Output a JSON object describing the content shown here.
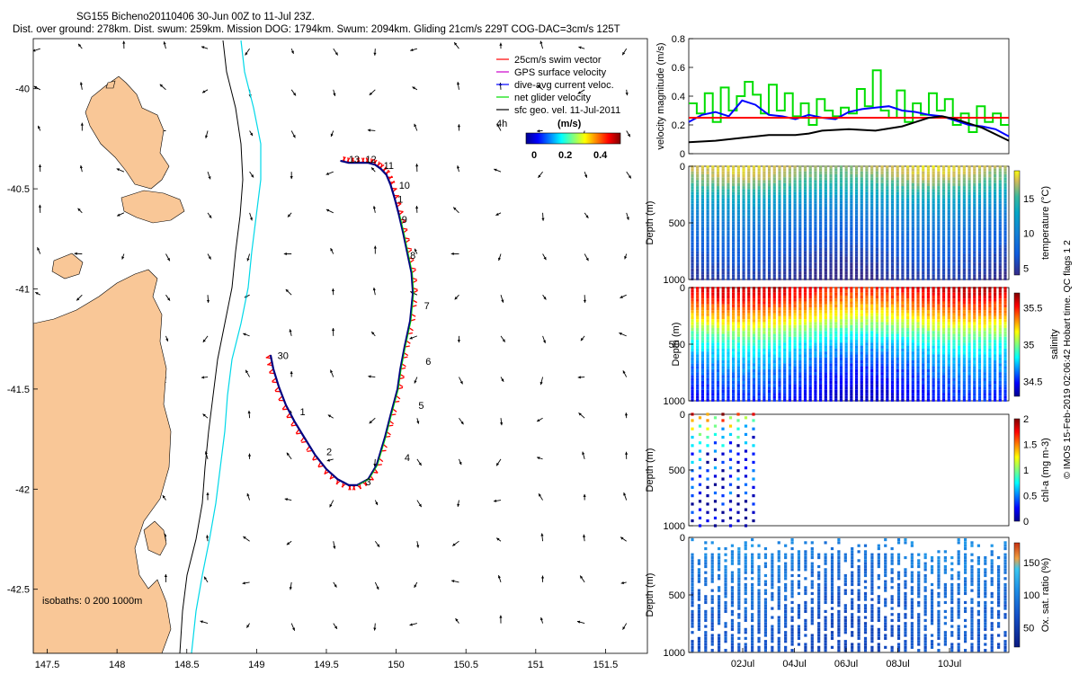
{
  "header": {
    "title_line1": "SG155 Bicheno20110406 30-Jun 00Z to 11-Jul 23Z.",
    "title_line2": "Dist. over ground: 278km. Dist. swum: 259km. Mission DOG: 1794km. Swum: 2094km. Gliding 21cm/s 229T COG-DAC=3cm/s 125T"
  },
  "colors": {
    "land": "#f9c797",
    "isobath_0": "#000000",
    "isobath_200": "#000000",
    "isobath_1000": "#00d8e8",
    "track": "#000080",
    "swim_vector": "#ff0000",
    "gps_velocity": "#cc00cc",
    "dive_avg": "#0000ff",
    "net_velocity": "#00dd00",
    "sfc_geo": "#000000"
  },
  "map": {
    "isobaths_label": "isobaths: 0   200 1000m",
    "legend": [
      {
        "key": "swim",
        "label": "25cm/s swim vector"
      },
      {
        "key": "gps",
        "label": "GPS surface velocity"
      },
      {
        "key": "dac",
        "label": "dive-avg current veloc."
      },
      {
        "key": "net",
        "label": "net glider velocity"
      },
      {
        "key": "sfc",
        "label": "sfc geo. vel. 11-Jul-2011"
      }
    ],
    "colorbar": {
      "label": "(m/s)",
      "ticks": [
        "0",
        "0.2",
        "0.4"
      ],
      "range": [
        0,
        0.5
      ],
      "side_label": "4h"
    }
  },
  "right_panels": {
    "imos_footer": "© IMOS 15-Feb-2019 02:06:42 Hobart time. QC flags 1  2"
  },
  "chart_data": [
    {
      "type": "map",
      "id": "glider-track-map",
      "xlabel": "Longitude",
      "ylabel": "Latitude",
      "xlim": [
        147.4,
        151.8
      ],
      "ylim": [
        -42.82,
        -39.75
      ],
      "xticks": [
        147.5,
        148,
        148.5,
        149,
        149.5,
        150,
        150.5,
        151,
        151.5
      ],
      "xtick_labels": [
        "147.5",
        "148",
        "148.5",
        "149",
        "149.5",
        "150",
        "150.5",
        "151",
        "151.5"
      ],
      "yticks": [
        -40,
        -40.5,
        -41,
        -41.5,
        -42,
        -42.5
      ],
      "ytick_labels": [
        "-40",
        "-40.5",
        "-41",
        "-41.5",
        "-42",
        "-42.5"
      ],
      "track": {
        "lon": [
          149.1,
          149.12,
          149.16,
          149.21,
          149.27,
          149.34,
          149.42,
          149.5,
          149.58,
          149.66,
          149.72,
          149.8,
          149.86,
          149.92,
          149.96,
          150.01,
          150.03,
          150.06,
          150.1,
          150.12,
          150.11,
          150.08,
          150.05,
          150.02,
          149.99,
          149.96,
          149.93,
          149.89,
          149.85,
          149.8,
          149.74,
          149.66,
          149.6
        ],
        "lat": [
          -41.33,
          -41.4,
          -41.49,
          -41.58,
          -41.66,
          -41.74,
          -41.83,
          -41.9,
          -41.95,
          -41.98,
          -41.98,
          -41.95,
          -41.88,
          -41.74,
          -41.63,
          -41.5,
          -41.4,
          -41.29,
          -41.16,
          -41.02,
          -40.92,
          -40.82,
          -40.72,
          -40.63,
          -40.55,
          -40.48,
          -40.43,
          -40.4,
          -40.38,
          -40.37,
          -40.37,
          -40.37,
          -40.36
        ]
      },
      "day_labels": [
        {
          "label": "30",
          "lon": 149.15,
          "lat": -41.35
        },
        {
          "label": "1",
          "lon": 149.31,
          "lat": -41.63
        },
        {
          "label": "2",
          "lon": 149.5,
          "lat": -41.83
        },
        {
          "label": "3",
          "lon": 149.78,
          "lat": -41.98
        },
        {
          "label": "4",
          "lon": 150.06,
          "lat": -41.86
        },
        {
          "label": "5",
          "lon": 150.16,
          "lat": -41.6
        },
        {
          "label": "6",
          "lon": 150.21,
          "lat": -41.38
        },
        {
          "label": "7",
          "lon": 150.2,
          "lat": -41.1
        },
        {
          "label": "8",
          "lon": 150.1,
          "lat": -40.85
        },
        {
          "label": "9",
          "lon": 150.04,
          "lat": -40.67
        },
        {
          "label": "1",
          "lon": 150.01,
          "lat": -40.57
        },
        {
          "label": "10",
          "lon": 150.02,
          "lat": -40.5
        },
        {
          "label": "11",
          "lon": 149.91,
          "lat": -40.4
        },
        {
          "label": "12",
          "lon": 149.78,
          "lat": -40.37
        },
        {
          "label": "13",
          "lon": 149.66,
          "lat": -40.37
        }
      ]
    },
    {
      "type": "line",
      "id": "velocity-magnitude",
      "ylabel": "velocity magnitude (m/s)",
      "xlim": [
        0,
        12
      ],
      "ylim": [
        0,
        0.8
      ],
      "yticks": [
        "0",
        "0.2",
        "0.4",
        "0.6",
        "0.8"
      ],
      "series": [
        {
          "name": "net glider velocity",
          "color": "#00dd00",
          "step": true,
          "x": [
            0,
            0.3,
            0.6,
            0.9,
            1.2,
            1.5,
            1.8,
            2.1,
            2.4,
            2.7,
            3.0,
            3.3,
            3.6,
            3.9,
            4.2,
            4.5,
            4.8,
            5.1,
            5.4,
            5.7,
            6.0,
            6.3,
            6.6,
            6.9,
            7.2,
            7.5,
            7.8,
            8.1,
            8.4,
            8.7,
            9.0,
            9.3,
            9.6,
            9.9,
            10.2,
            10.5,
            10.8,
            11.1,
            11.4,
            11.7
          ],
          "values": [
            0.35,
            0.28,
            0.42,
            0.22,
            0.46,
            0.3,
            0.4,
            0.5,
            0.41,
            0.28,
            0.48,
            0.3,
            0.42,
            0.26,
            0.35,
            0.2,
            0.38,
            0.3,
            0.26,
            0.32,
            0.28,
            0.45,
            0.33,
            0.58,
            0.3,
            0.25,
            0.44,
            0.22,
            0.35,
            0.27,
            0.42,
            0.3,
            0.38,
            0.2,
            0.28,
            0.15,
            0.33,
            0.22,
            0.28,
            0.2
          ]
        },
        {
          "name": "dive-avg current veloc.",
          "color": "#0000ff",
          "x": [
            0,
            0.5,
            1,
            1.5,
            2,
            2.5,
            3,
            3.5,
            4,
            4.5,
            5,
            5.5,
            6,
            6.5,
            7,
            7.5,
            8,
            8.5,
            9,
            9.5,
            10,
            10.5,
            11,
            11.5,
            12
          ],
          "values": [
            0.22,
            0.27,
            0.29,
            0.26,
            0.37,
            0.34,
            0.27,
            0.26,
            0.24,
            0.27,
            0.25,
            0.24,
            0.29,
            0.31,
            0.32,
            0.33,
            0.3,
            0.29,
            0.27,
            0.26,
            0.23,
            0.2,
            0.19,
            0.17,
            0.12
          ]
        },
        {
          "name": "25cm/s swim vector",
          "color": "#ff0000",
          "x": [
            0,
            12
          ],
          "values": [
            0.25,
            0.25
          ]
        },
        {
          "name": "sfc geo. vel. 11-Jul-2011",
          "color": "#000000",
          "x": [
            0,
            1,
            2,
            3,
            4,
            4.5,
            5,
            6,
            7,
            8,
            8.5,
            9,
            9.5,
            10,
            11,
            12
          ],
          "values": [
            0.08,
            0.09,
            0.11,
            0.13,
            0.13,
            0.14,
            0.16,
            0.17,
            0.16,
            0.19,
            0.22,
            0.25,
            0.26,
            0.24,
            0.18,
            0.09
          ]
        }
      ]
    },
    {
      "type": "scatter",
      "id": "temperature-section",
      "ylabel": "Depth (m)",
      "colorbar_label": "temperature (°C)",
      "ylim": [
        1000,
        0
      ],
      "yticks": [
        "0",
        "500",
        "1000"
      ],
      "clim": [
        4,
        19
      ],
      "cticks": [
        "5",
        "10",
        "15"
      ],
      "cvalues": [
        5,
        10,
        15
      ],
      "profile": {
        "depths": [
          0,
          100,
          200,
          300,
          400,
          500,
          600,
          700,
          800,
          900,
          1000
        ],
        "values": [
          17.5,
          16.5,
          14.5,
          12,
          10.5,
          9,
          8,
          7,
          6,
          5.2,
          4.5
        ]
      }
    },
    {
      "type": "scatter",
      "id": "salinity-section",
      "ylabel": "Depth (m)",
      "colorbar_label": "salinity",
      "ylim": [
        1000,
        0
      ],
      "yticks": [
        "0",
        "500",
        "1000"
      ],
      "clim": [
        34.3,
        35.7
      ],
      "cticks": [
        "34.5",
        "35",
        "35.5"
      ],
      "cvalues": [
        34.5,
        35,
        35.5
      ],
      "profile": {
        "depths": [
          0,
          100,
          200,
          300,
          400,
          500,
          600,
          700,
          800,
          900,
          1000
        ],
        "values": [
          35.55,
          35.45,
          35.3,
          35.15,
          34.95,
          34.8,
          34.7,
          34.62,
          34.55,
          34.5,
          34.45
        ]
      }
    },
    {
      "type": "scatter",
      "id": "chl-section",
      "ylabel": "Depth (m)",
      "colorbar_label": "chl-a (mg m-3)",
      "ylim": [
        1000,
        0
      ],
      "yticks": [
        "0",
        "500",
        "1000"
      ],
      "clim": [
        0,
        2
      ],
      "cticks": [
        "0",
        "0.5",
        "1",
        "1.5",
        "2"
      ],
      "cvalues": [
        0,
        0.5,
        1,
        1.5,
        2
      ],
      "profile": {
        "depths": [
          0,
          100,
          200,
          400,
          600,
          800,
          1000
        ],
        "values": [
          1.6,
          1.0,
          0.5,
          0.3,
          0.2,
          0.1,
          0.1
        ]
      }
    },
    {
      "type": "scatter",
      "id": "oxygen-section",
      "ylabel": "Depth (m)",
      "colorbar_label": "Ox. sat. ratio (%)",
      "ylim": [
        1000,
        0
      ],
      "yticks": [
        "0",
        "500",
        "1000"
      ],
      "clim": [
        20,
        180
      ],
      "cticks": [
        "50",
        "100",
        "150"
      ],
      "cvalues": [
        50,
        100,
        150
      ],
      "xticks": [
        "02Jul",
        "04Jul",
        "06Jul",
        "08Jul",
        "10Jul"
      ],
      "profile": {
        "depths": [
          0,
          100,
          200,
          400,
          600,
          800,
          1000
        ],
        "values": [
          105,
          100,
          95,
          85,
          75,
          70,
          65
        ]
      }
    }
  ]
}
